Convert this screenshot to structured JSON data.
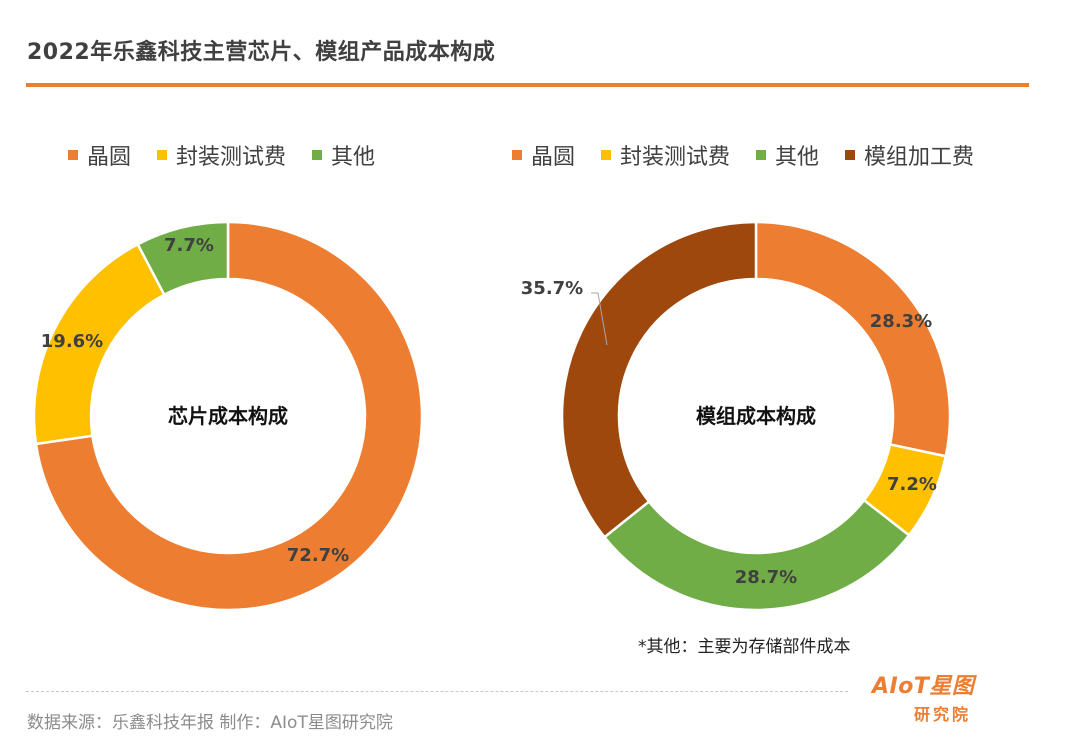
{
  "title": "2022年乐鑫科技主营芯片、模组产品成本构成",
  "colors": {
    "accent": "#ED7D31",
    "wafer": "#ED7D31",
    "packaging": "#FFC000",
    "other": "#70AD47",
    "module_processing": "#9E480E"
  },
  "chart_data": [
    {
      "type": "pie",
      "donut": true,
      "center_label": "芯片成本构成",
      "legend": [
        "晶圆",
        "封装测试费",
        "其他"
      ],
      "slices": [
        {
          "name": "晶圆",
          "value": 72.7,
          "label": "72.7%"
        },
        {
          "name": "封装测试费",
          "value": 19.6,
          "label": "19.6%"
        },
        {
          "name": "其他",
          "value": 7.7,
          "label": "7.7%"
        }
      ]
    },
    {
      "type": "pie",
      "donut": true,
      "center_label": "模组成本构成",
      "legend": [
        "晶圆",
        "封装测试费",
        "其他",
        "模组加工费"
      ],
      "slices": [
        {
          "name": "晶圆",
          "value": 28.3,
          "label": "28.3%"
        },
        {
          "name": "封装测试费",
          "value": 7.2,
          "label": "7.2%"
        },
        {
          "name": "其他",
          "value": 28.7,
          "label": "28.7%"
        },
        {
          "name": "模组加工费",
          "value": 35.7,
          "label": "35.7%"
        }
      ]
    }
  ],
  "footnote": "*其他：主要为存储部件成本",
  "source": "数据来源：乐鑫科技年报  制作：AIoT星图研究院",
  "logo": {
    "main": "AIoT星图",
    "sub": "研究院"
  }
}
